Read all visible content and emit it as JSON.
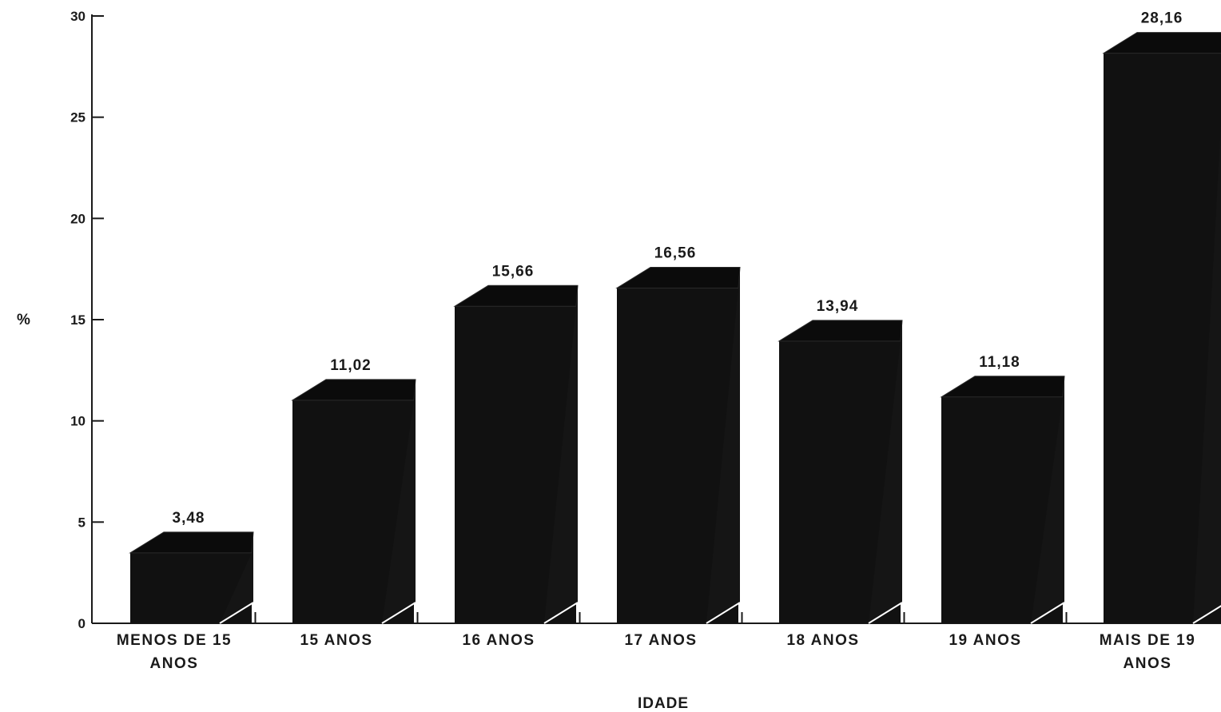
{
  "chart_data": {
    "type": "bar",
    "title": "",
    "xlabel": "IDADE",
    "ylabel": "%",
    "ylim": [
      0,
      30
    ],
    "yticks": [
      0,
      5,
      10,
      15,
      20,
      25,
      30
    ],
    "grid": false,
    "legend": "none",
    "style": "3d",
    "bar_color": "#111111",
    "categories": [
      [
        "MENOS DE 15",
        "ANOS"
      ],
      [
        "15 ANOS"
      ],
      [
        "16 ANOS"
      ],
      [
        "17 ANOS"
      ],
      [
        "18 ANOS"
      ],
      [
        "19 ANOS"
      ],
      [
        "MAIS DE 19",
        "ANOS"
      ]
    ],
    "values": [
      3.48,
      11.02,
      15.66,
      16.56,
      13.94,
      11.18,
      28.16
    ],
    "value_labels": [
      "3,48",
      "11,02",
      "15,66",
      "16,56",
      "13,94",
      "11,18",
      "28,16"
    ]
  }
}
